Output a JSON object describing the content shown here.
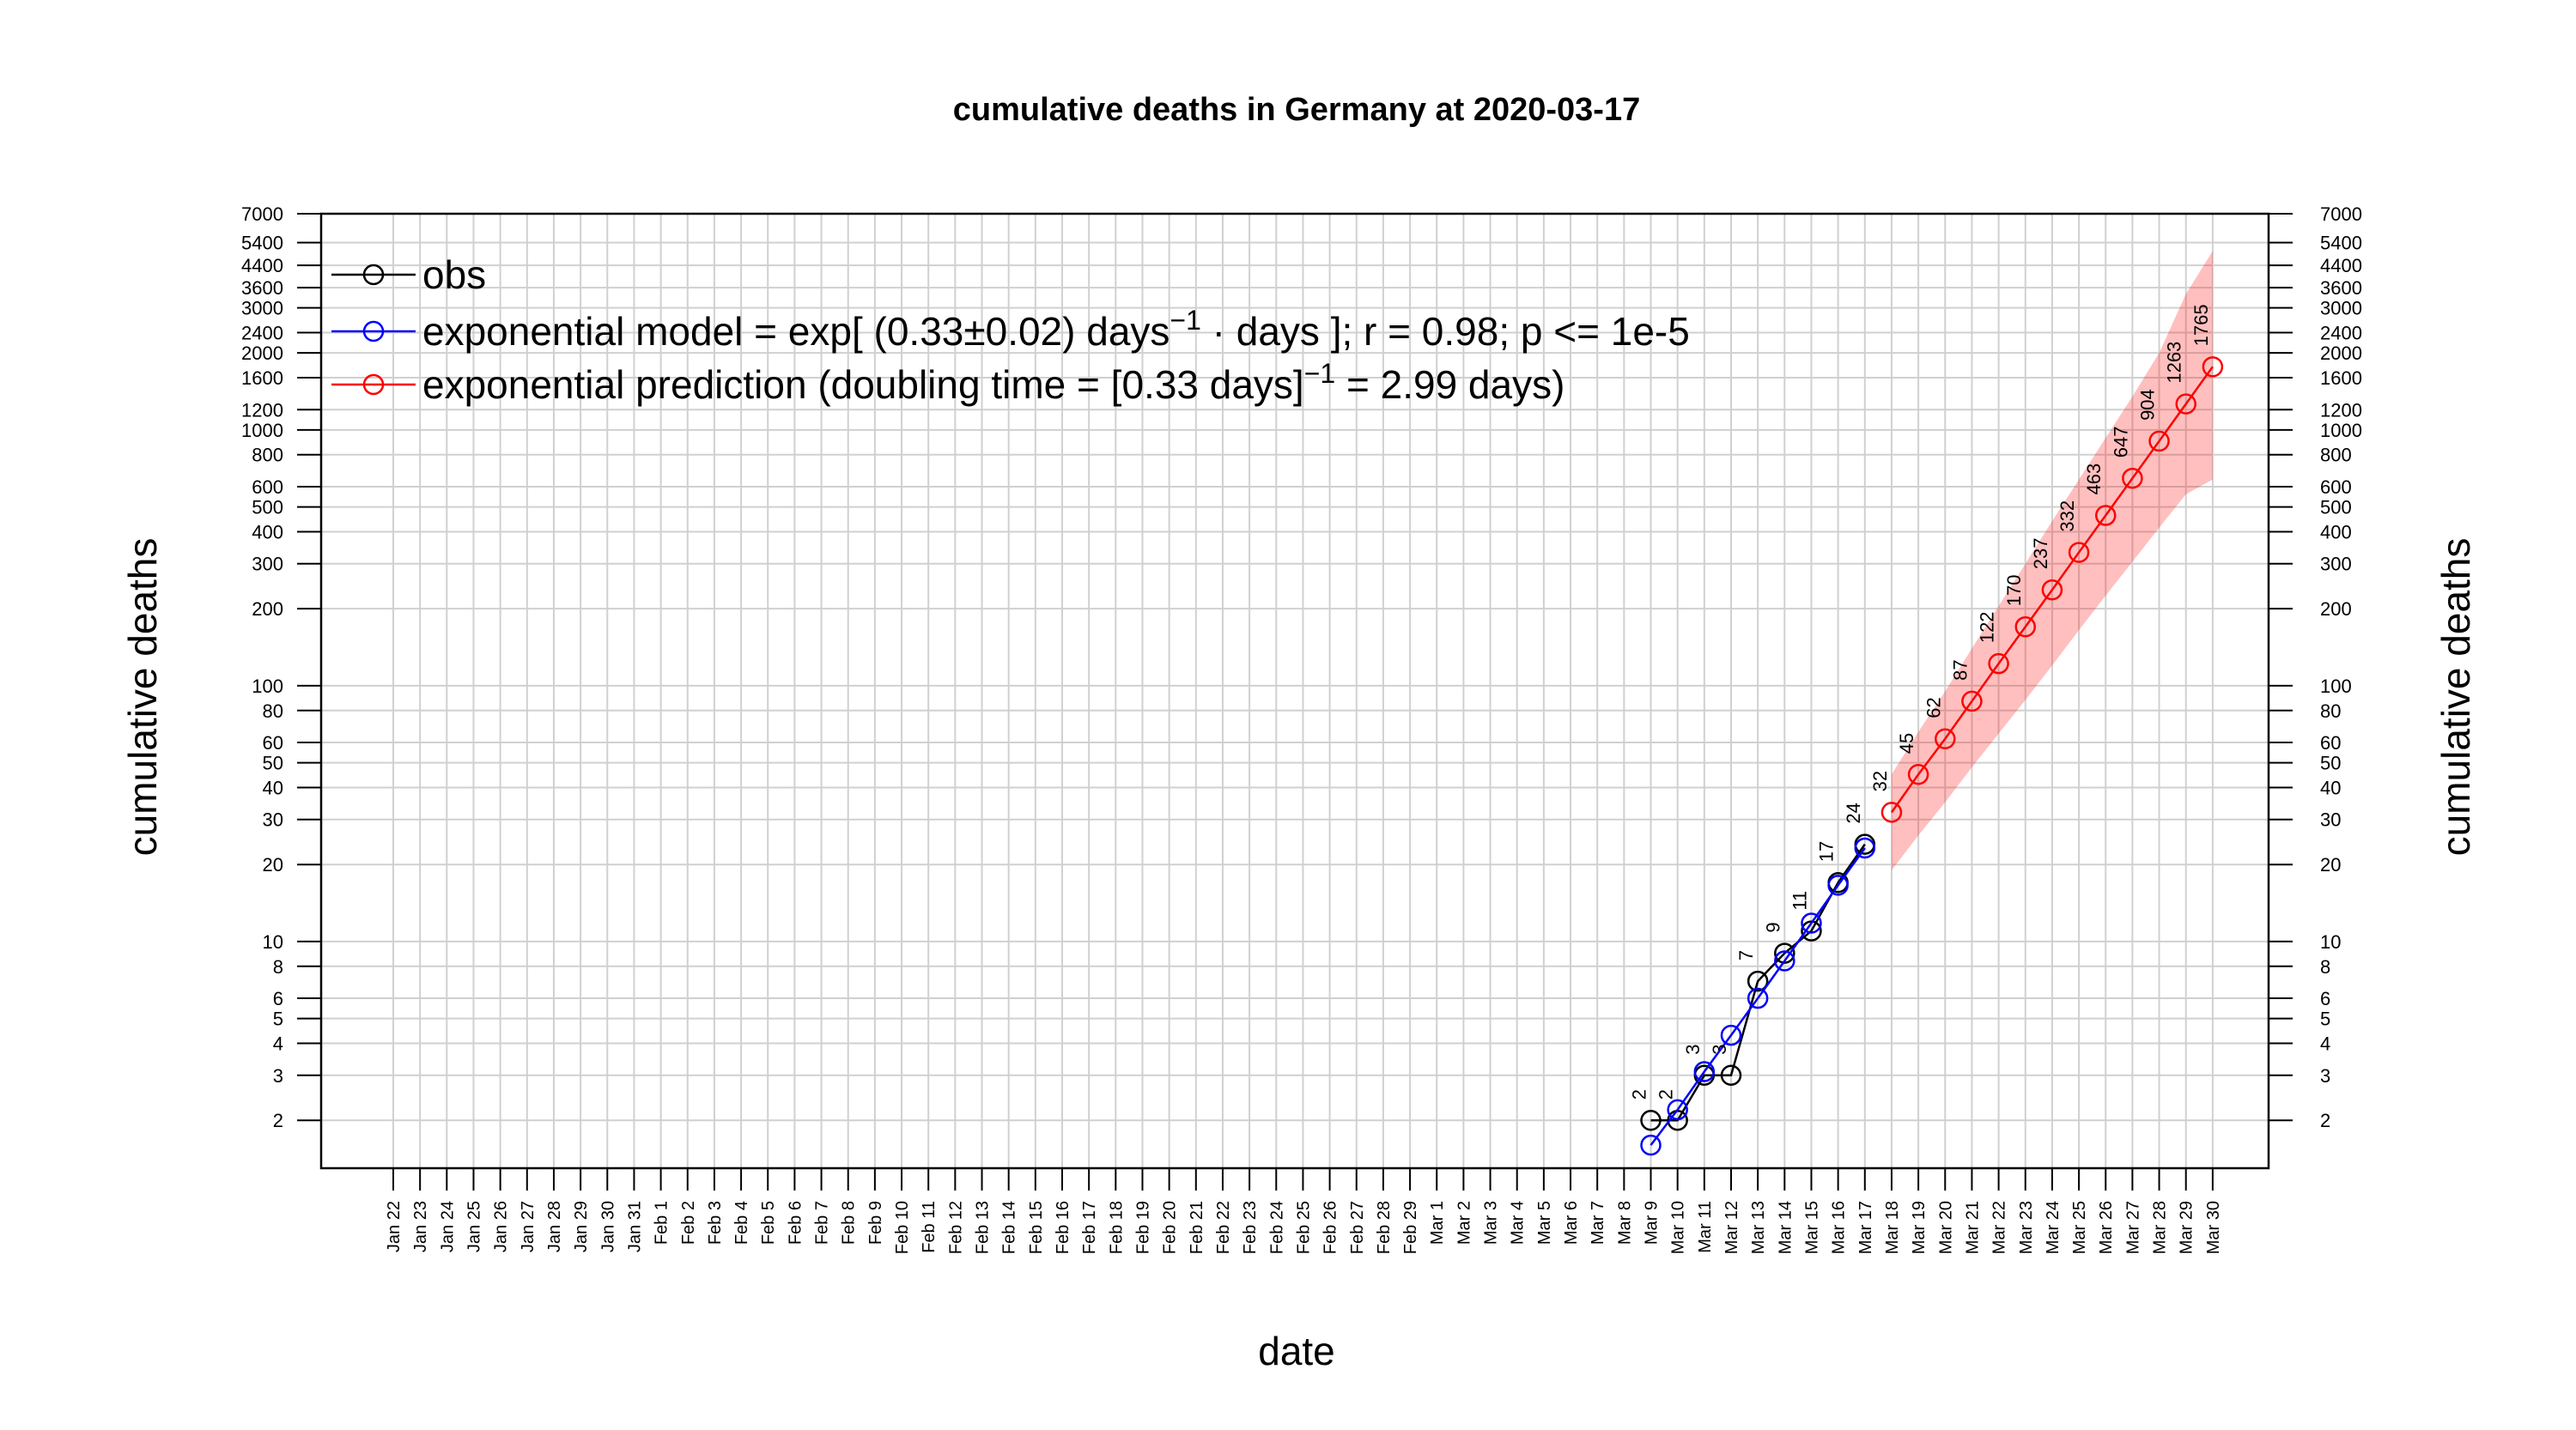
{
  "chart_data": {
    "type": "line",
    "title": "cumulative deaths in Germany at 2020-03-17",
    "xlabel": "date",
    "ylabel": "cumulative deaths",
    "ylabel_right": "cumulative deaths",
    "yscale": "log",
    "ylim": [
      1.3,
      7000
    ],
    "xlim": [
      "Jan 22",
      "Mar 30"
    ],
    "grid": true,
    "legend_position": "top-left",
    "dates": [
      "Jan 22",
      "Jan 23",
      "Jan 24",
      "Jan 25",
      "Jan 26",
      "Jan 27",
      "Jan 28",
      "Jan 29",
      "Jan 30",
      "Jan 31",
      "Feb 1",
      "Feb 2",
      "Feb 3",
      "Feb 4",
      "Feb 5",
      "Feb 6",
      "Feb 7",
      "Feb 8",
      "Feb 9",
      "Feb 10",
      "Feb 11",
      "Feb 12",
      "Feb 13",
      "Feb 14",
      "Feb 15",
      "Feb 16",
      "Feb 17",
      "Feb 18",
      "Feb 19",
      "Feb 20",
      "Feb 21",
      "Feb 22",
      "Feb 23",
      "Feb 24",
      "Feb 25",
      "Feb 26",
      "Feb 27",
      "Feb 28",
      "Feb 29",
      "Mar 1",
      "Mar 2",
      "Mar 3",
      "Mar 4",
      "Mar 5",
      "Mar 6",
      "Mar 7",
      "Mar 8",
      "Mar 9",
      "Mar 10",
      "Mar 11",
      "Mar 12",
      "Mar 13",
      "Mar 14",
      "Mar 15",
      "Mar 16",
      "Mar 17",
      "Mar 18",
      "Mar 19",
      "Mar 20",
      "Mar 21",
      "Mar 22",
      "Mar 23",
      "Mar 24",
      "Mar 25",
      "Mar 26",
      "Mar 27",
      "Mar 28",
      "Mar 29",
      "Mar 30"
    ],
    "y_ticks": [
      2,
      3,
      4,
      5,
      6,
      8,
      10,
      20,
      30,
      40,
      50,
      60,
      80,
      100,
      200,
      300,
      400,
      500,
      600,
      800,
      1000,
      1200,
      1600,
      2000,
      2400,
      3000,
      3600,
      4400,
      5400,
      7000
    ],
    "y_tick_labels": [
      "2",
      "3",
      "4",
      "5",
      "6",
      "8",
      "10",
      "20",
      "30",
      "40",
      "50",
      "60",
      "80",
      "100",
      "200",
      "300",
      "400",
      "500",
      "600",
      "800",
      "1000",
      "1200",
      "1600",
      "2000",
      "2400",
      "3000",
      "3600",
      "4400",
      "5400",
      "7000"
    ],
    "series": [
      {
        "name": "obs",
        "color": "#000000",
        "x": [
          "Mar 9",
          "Mar 10",
          "Mar 11",
          "Mar 12",
          "Mar 13",
          "Mar 14",
          "Mar 15",
          "Mar 16",
          "Mar 17"
        ],
        "y": [
          2,
          2,
          3,
          3,
          7,
          9,
          11,
          17,
          24
        ],
        "labels": [
          "2",
          "2",
          "3",
          "3",
          "7",
          "9",
          "11",
          "17",
          "24"
        ]
      },
      {
        "name": "exponential model",
        "color": "#0000ff",
        "x": [
          "Mar 9",
          "Mar 10",
          "Mar 11",
          "Mar 12",
          "Mar 13",
          "Mar 14",
          "Mar 15",
          "Mar 16",
          "Mar 17"
        ],
        "y": [
          1.6,
          2.2,
          3.1,
          4.3,
          6.0,
          8.4,
          11.8,
          16.6,
          23.2
        ]
      },
      {
        "name": "exponential prediction",
        "color": "#ff0000",
        "x": [
          "Mar 18",
          "Mar 19",
          "Mar 20",
          "Mar 21",
          "Mar 22",
          "Mar 23",
          "Mar 24",
          "Mar 25",
          "Mar 26",
          "Mar 27",
          "Mar 28",
          "Mar 29",
          "Mar 30"
        ],
        "y": [
          32,
          45,
          62,
          87,
          122,
          170,
          237,
          332,
          463,
          647,
          904,
          1263,
          1765
        ],
        "labels": [
          "32",
          "45",
          "62",
          "87",
          "122",
          "170",
          "237",
          "332",
          "463",
          "647",
          "904",
          "1263",
          "1765"
        ],
        "band_lower": [
          19,
          26,
          35,
          48,
          65,
          88,
          120,
          165,
          225,
          305,
          415,
          560,
          640
        ],
        "band_upper": [
          45,
          66,
          95,
          140,
          205,
          300,
          440,
          640,
          930,
          1350,
          2000,
          3400,
          5000
        ],
        "band_color": "#ff0000"
      }
    ],
    "legend": [
      {
        "series": 0,
        "text": "obs"
      },
      {
        "series": 1,
        "text": "exponential model = exp[ (0.33±0.02) days",
        "sup": "−1",
        "suffix": " · days ]; r = 0.98; p <= 1e-5"
      },
      {
        "series": 2,
        "text": "exponential prediction (doubling time = [0.33 days]",
        "sup": "−1",
        "suffix": " = 2.99 days)"
      }
    ]
  }
}
